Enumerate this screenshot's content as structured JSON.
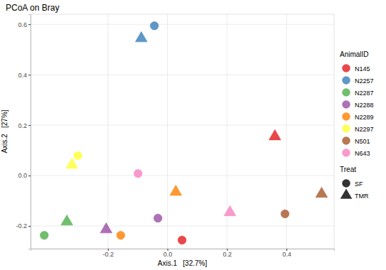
{
  "chart_data": {
    "type": "scatter",
    "title": "PCoA on Bray",
    "x_label": "Axis.1   [32.7%]",
    "y_label": "Axis.2   [27%]",
    "xlim": [
      -0.46,
      0.56
    ],
    "ylim": [
      -0.29,
      0.64
    ],
    "xticks": [
      -0.2,
      {
        "value": 0,
        "label": "0.0"
      },
      0.2,
      0.4
    ],
    "yticks": [
      -0.2,
      {
        "value": 0,
        "label": "0.0"
      },
      0.2,
      0.4,
      0.6
    ],
    "grid": true,
    "legend": "right",
    "legend_title": "AnimalID",
    "shape_legend": {
      "title": "Treat",
      "labels": [
        "SF",
        "TMR"
      ],
      "marker": [
        "circle",
        "triangle"
      ]
    },
    "series": [
      {
        "name": "N145",
        "color": "#E41A1C",
        "treat": [
          "SF",
          "TMR"
        ],
        "x": [
          0.049,
          0.361
        ],
        "values": [
          -0.256,
          0.155
        ]
      },
      {
        "name": "N2257",
        "color": "#377EB8",
        "treat": [
          "SF",
          "TMR"
        ],
        "x": [
          -0.044,
          -0.088
        ],
        "values": [
          0.594,
          0.544
        ]
      },
      {
        "name": "N2287",
        "color": "#4DAF4A",
        "treat": [
          "SF",
          "TMR"
        ],
        "x": [
          -0.414,
          -0.338
        ],
        "values": [
          -0.237,
          -0.183
        ]
      },
      {
        "name": "N2288",
        "color": "#984EA3",
        "treat": [
          "SF",
          "TMR"
        ],
        "x": [
          -0.032,
          -0.206
        ],
        "values": [
          -0.169,
          -0.214
        ]
      },
      {
        "name": "N2289",
        "color": "#FF7F00",
        "treat": [
          "SF",
          "TMR"
        ],
        "x": [
          -0.157,
          0.028
        ],
        "values": [
          -0.237,
          -0.065
        ]
      },
      {
        "name": "N2297",
        "color": "#FFFF33",
        "treat": [
          "SF",
          "TMR"
        ],
        "x": [
          -0.301,
          -0.321
        ],
        "values": [
          0.079,
          0.042
        ]
      },
      {
        "name": "N501",
        "color": "#A65628",
        "treat": [
          "SF",
          "TMR"
        ],
        "x": [
          0.395,
          0.518
        ],
        "values": [
          -0.152,
          -0.073
        ]
      },
      {
        "name": "N643",
        "color": "#F781BF",
        "treat": [
          "SF",
          "TMR"
        ],
        "x": [
          -0.099,
          0.21
        ],
        "values": [
          0.008,
          -0.146
        ]
      }
    ]
  }
}
